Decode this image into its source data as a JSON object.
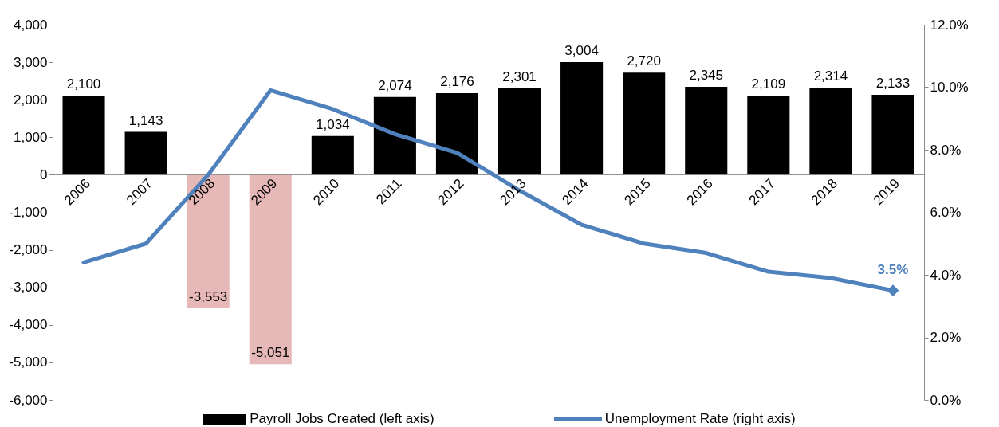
{
  "chart_data": {
    "type": "bar",
    "categories": [
      "2006",
      "2007",
      "2008",
      "2009",
      "2010",
      "2011",
      "2012",
      "2013",
      "2014",
      "2015",
      "2016",
      "2017",
      "2018",
      "2019"
    ],
    "series": [
      {
        "name": "Payroll Jobs Created (left axis)",
        "color": "#000000",
        "colors": [
          "#000000",
          "#000000",
          "#e6b9b8",
          "#e6b9b8",
          "#000000",
          "#000000",
          "#000000",
          "#000000",
          "#000000",
          "#000000",
          "#000000",
          "#000000",
          "#000000",
          "#000000"
        ],
        "values": [
          2100,
          1143,
          -3553,
          -5051,
          1034,
          2074,
          2176,
          2301,
          3004,
          2720,
          2345,
          2109,
          2314,
          2133
        ],
        "value_labels": [
          "2,100",
          "1,143",
          "-3,553",
          "-5,051",
          "1,034",
          "2,074",
          "2,176",
          "2,301",
          "3,004",
          "2,720",
          "2,345",
          "2,109",
          "2,314",
          "2,133"
        ]
      },
      {
        "name": "Unemployment Rate (right axis)",
        "type": "line",
        "axis": "y2",
        "color": "#4f81bd",
        "values": [
          4.4,
          5.0,
          7.2,
          9.9,
          9.3,
          8.5,
          7.9,
          6.7,
          5.6,
          5.0,
          4.7,
          4.1,
          3.9,
          3.5
        ],
        "value_labels": [
          null,
          null,
          null,
          null,
          null,
          null,
          null,
          null,
          null,
          null,
          null,
          null,
          null,
          "3.5%"
        ]
      }
    ],
    "ylim": [
      -6000,
      4000
    ],
    "yticks": [
      {
        "value": -6000,
        "label": "-6,000"
      },
      {
        "value": -5000,
        "label": "-5,000"
      },
      {
        "value": -4000,
        "label": "-4,000"
      },
      {
        "value": -3000,
        "label": "-3,000"
      },
      {
        "value": -2000,
        "label": "-2,000"
      },
      {
        "value": -1000,
        "label": "-1,000"
      },
      0,
      {
        "value": 1000,
        "label": "1,000"
      },
      {
        "value": 2000,
        "label": "2,000"
      },
      {
        "value": 3000,
        "label": "3,000"
      },
      {
        "value": 4000,
        "label": "4,000"
      }
    ],
    "y2lim": [
      0,
      12
    ],
    "y2ticks": [
      {
        "value": 0,
        "label": "0.0%"
      },
      {
        "value": 2,
        "label": "2.0%"
      },
      {
        "value": 4,
        "label": "4.0%"
      },
      {
        "value": 6,
        "label": "6.0%"
      },
      {
        "value": 8,
        "label": "8.0%"
      },
      {
        "value": 10,
        "label": "10.0%"
      },
      {
        "value": 12,
        "label": "12.0%"
      }
    ],
    "grid": false,
    "legend": "bottom"
  }
}
